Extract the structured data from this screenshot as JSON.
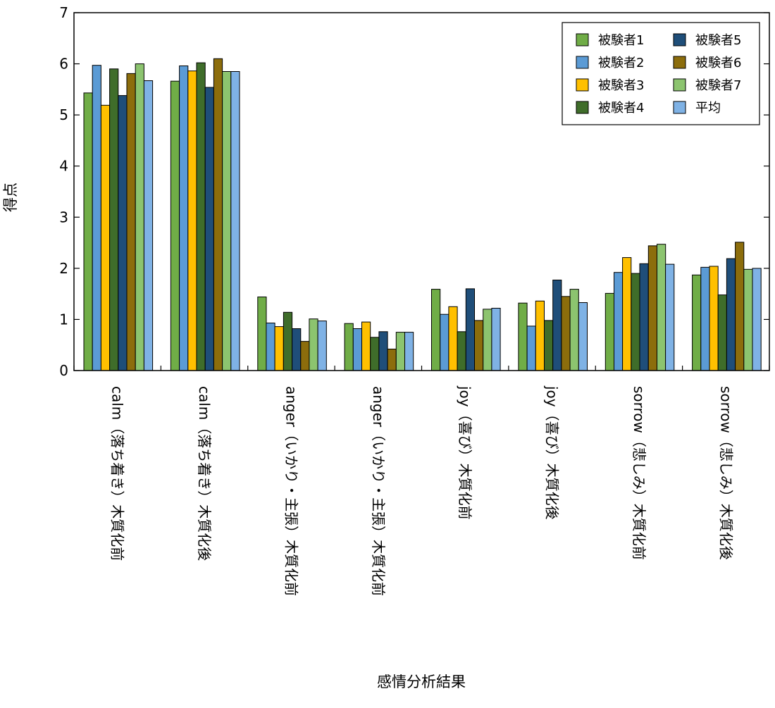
{
  "chart_data": {
    "type": "bar",
    "title": "",
    "xlabel": "感情分析結果",
    "ylabel": "得点",
    "ylim": [
      0,
      7
    ],
    "yticks": [
      0,
      1,
      2,
      3,
      4,
      5,
      6,
      7
    ],
    "grid": false,
    "legend_position": "top-right",
    "categories": [
      "calm（落ち着き）木質化前",
      "calm（落ち着き）木質化後",
      "anger（いかり・主張）木質化前",
      "anger（いかり・主張）木質化前",
      "joy（喜び）木質化前",
      "joy（喜び）木質化後",
      "sorrow（悲しみ）木質化前",
      "sorrow（悲しみ）木質化後"
    ],
    "series": [
      {
        "name": "被験者1",
        "color": "#70ad47",
        "values": [
          5.43,
          5.66,
          1.44,
          0.92,
          1.59,
          1.32,
          1.51,
          1.87
        ]
      },
      {
        "name": "被験者2",
        "color": "#5b9bd5",
        "values": [
          5.97,
          5.96,
          0.93,
          0.82,
          1.1,
          0.87,
          1.92,
          2.02
        ]
      },
      {
        "name": "被験者3",
        "color": "#ffc000",
        "values": [
          5.19,
          5.86,
          0.86,
          0.95,
          1.25,
          1.36,
          2.21,
          2.04
        ]
      },
      {
        "name": "被験者4",
        "color": "#3f6d2a",
        "values": [
          5.9,
          6.02,
          1.14,
          0.65,
          0.76,
          0.98,
          1.9,
          1.48
        ]
      },
      {
        "name": "被験者5",
        "color": "#1f4e79",
        "values": [
          5.38,
          5.54,
          0.82,
          0.76,
          1.6,
          1.77,
          2.09,
          2.19
        ]
      },
      {
        "name": "被験者6",
        "color": "#8c6d0c",
        "values": [
          5.81,
          6.1,
          0.57,
          0.42,
          0.98,
          1.45,
          2.44,
          2.51
        ]
      },
      {
        "name": "被験者7",
        "color": "#8cc46f",
        "values": [
          6.0,
          5.85,
          1.01,
          0.75,
          1.2,
          1.59,
          2.47,
          1.98
        ]
      },
      {
        "name": "平均",
        "color": "#7fb2e5",
        "values": [
          5.67,
          5.85,
          0.97,
          0.75,
          1.22,
          1.33,
          2.08,
          2.0
        ]
      }
    ]
  }
}
